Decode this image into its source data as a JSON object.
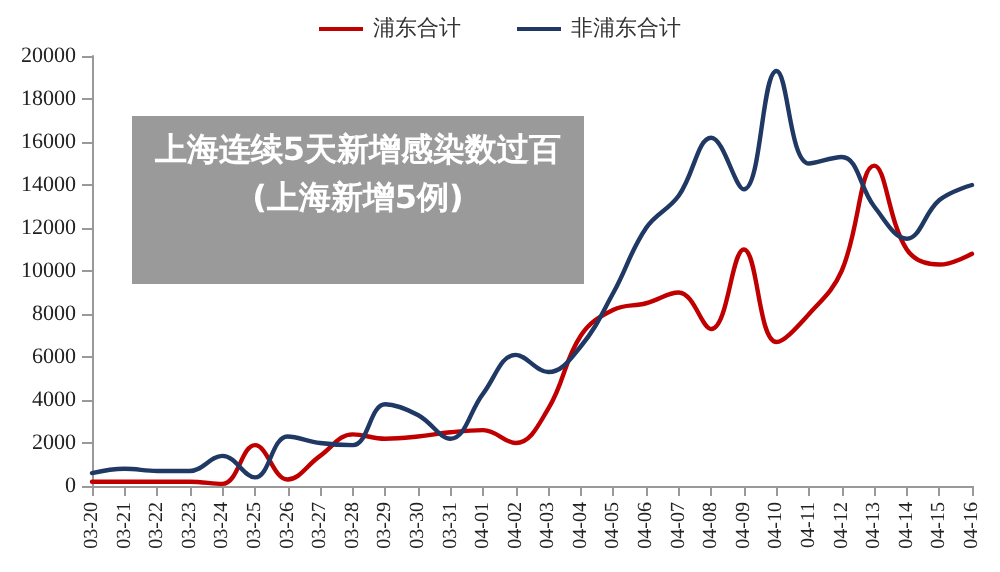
{
  "chart_data": {
    "type": "line",
    "title": "上海连续5天新增感染数过百(上海新增5例)",
    "categories": [
      "03-20",
      "03-21",
      "03-22",
      "03-23",
      "03-24",
      "03-25",
      "03-26",
      "03-27",
      "03-28",
      "03-29",
      "03-30",
      "03-31",
      "04-01",
      "04-02",
      "04-03",
      "04-04",
      "04-05",
      "04-06",
      "04-07",
      "04-08",
      "04-09",
      "04-10",
      "04-11",
      "04-12",
      "04-13",
      "04-14",
      "04-15",
      "04-16"
    ],
    "series": [
      {
        "name": "浦东合计",
        "color": "#c00000",
        "values": [
          200,
          200,
          200,
          200,
          100,
          1900,
          300,
          1400,
          2400,
          2200,
          2300,
          2500,
          2600,
          2000,
          3600,
          7000,
          8200,
          8500,
          9000,
          7300,
          11000,
          6700,
          8000,
          10000,
          14900,
          11000,
          10300,
          10800
        ]
      },
      {
        "name": "非浦东合计",
        "color": "#1f3864",
        "values": [
          600,
          800,
          700,
          700,
          1400,
          400,
          2300,
          2000,
          1900,
          3800,
          3300,
          2200,
          4300,
          6100,
          5300,
          6500,
          9000,
          12000,
          13500,
          16200,
          13800,
          19300,
          15000,
          15300,
          13000,
          11500,
          13300,
          14000
        ]
      }
    ],
    "ylim": [
      0,
      20000
    ],
    "yticks": [
      0,
      2000,
      4000,
      6000,
      8000,
      10000,
      12000,
      14000,
      16000,
      18000,
      20000
    ],
    "grid": false,
    "legend": "top",
    "marker": "none",
    "line_style": "solid"
  }
}
